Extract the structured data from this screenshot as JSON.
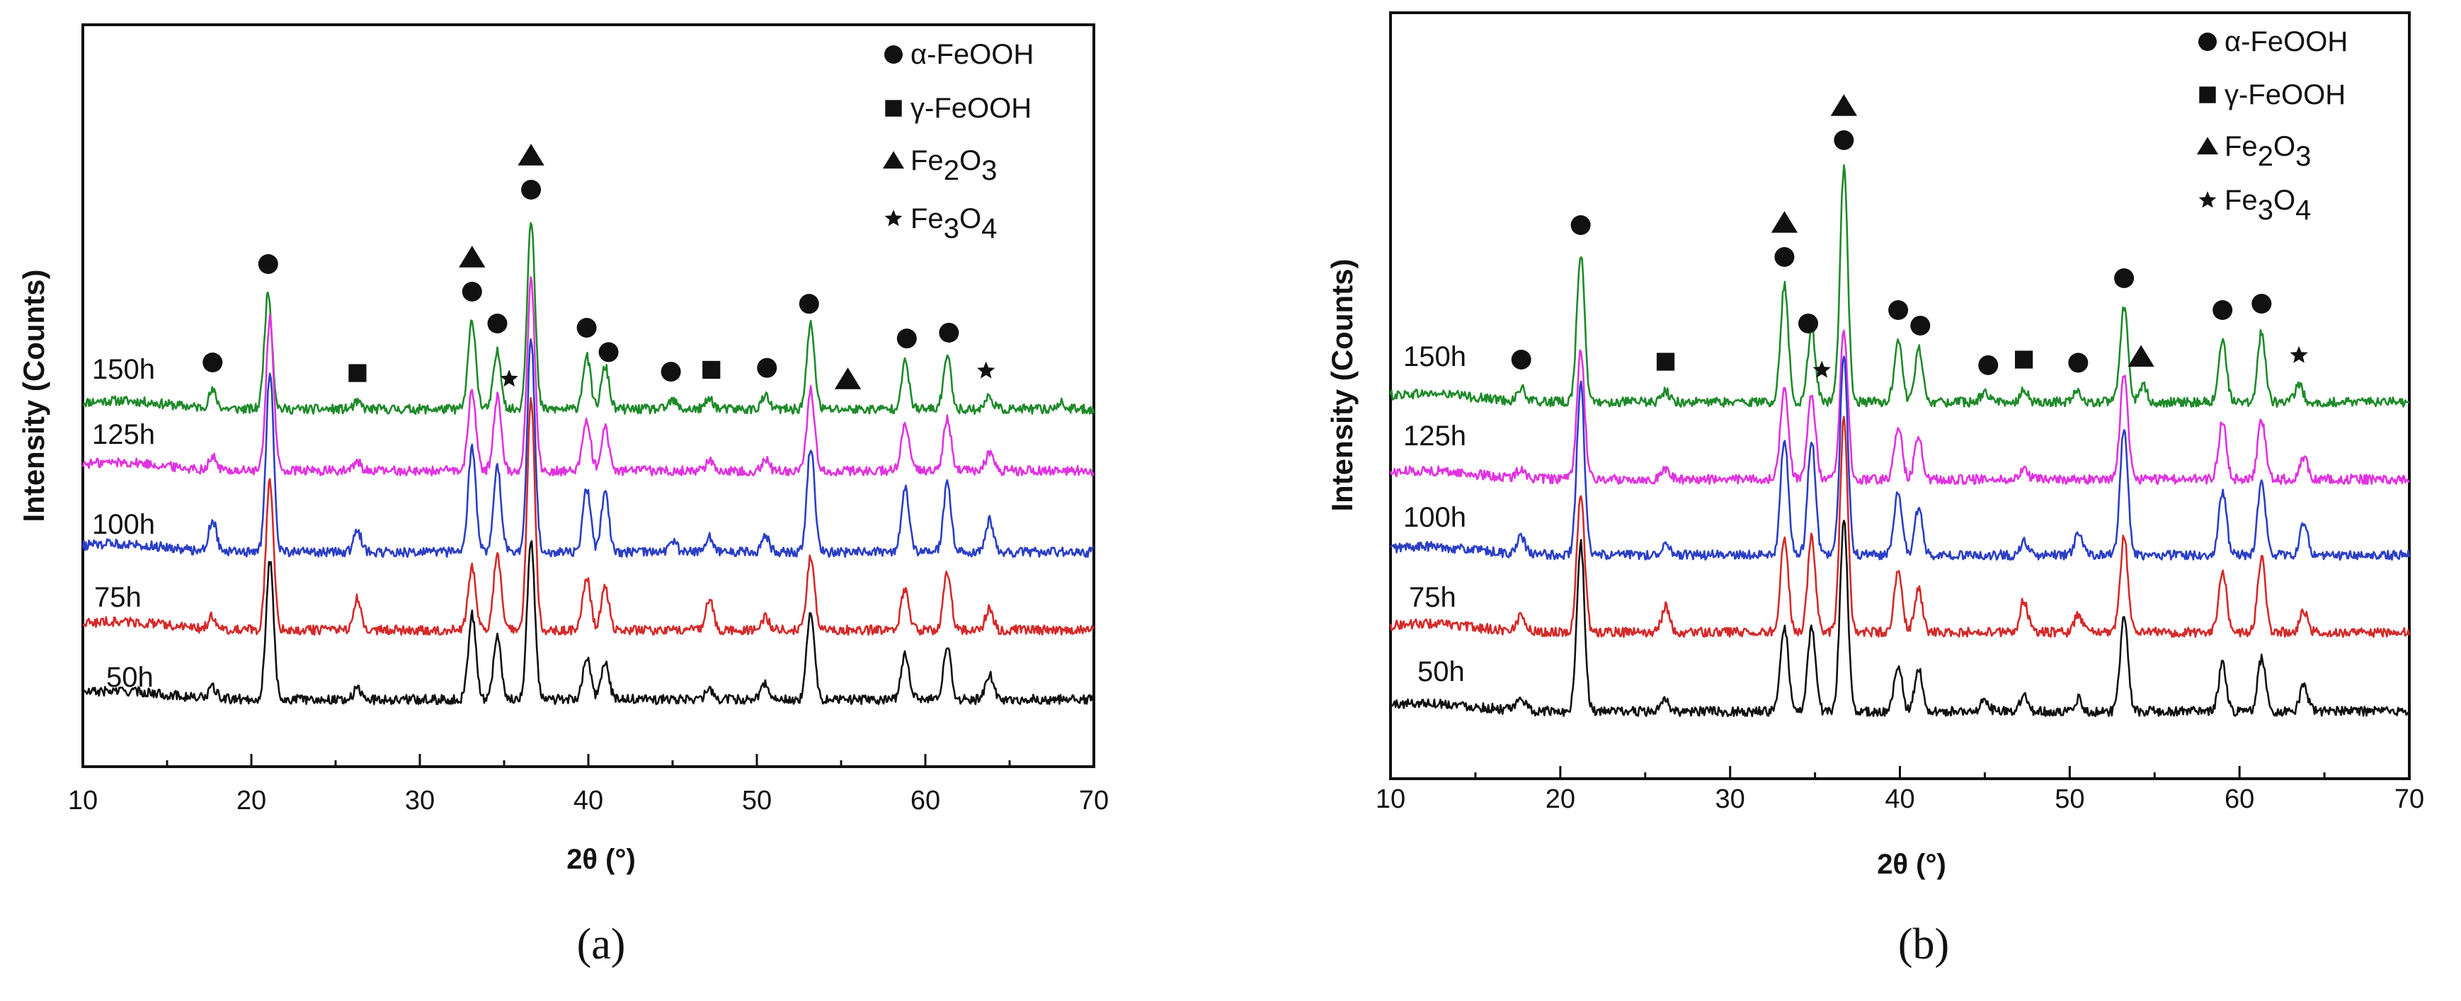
{
  "chart_data": [
    {
      "type": "line",
      "caption": "(a)",
      "xlabel": "2θ (°)",
      "ylabel": "Intensity (Counts)",
      "xlim": [
        10,
        70
      ],
      "xticks": [
        10,
        20,
        30,
        40,
        50,
        60,
        70
      ],
      "series": [
        {
          "name": "150h",
          "color": "#1f8a2a",
          "peaks": [
            [
              17.7,
              0.08
            ],
            [
              21.0,
              0.55
            ],
            [
              26.3,
              0.03
            ],
            [
              33.1,
              0.42
            ],
            [
              34.6,
              0.27
            ],
            [
              36.6,
              0.9
            ],
            [
              39.9,
              0.25
            ],
            [
              41.0,
              0.2
            ],
            [
              45.0,
              0.04
            ],
            [
              47.2,
              0.05
            ],
            [
              50.5,
              0.06
            ],
            [
              53.2,
              0.4
            ],
            [
              58.8,
              0.22
            ],
            [
              61.3,
              0.25
            ],
            [
              63.8,
              0.06
            ],
            [
              68.0,
              0.03
            ]
          ]
        },
        {
          "name": "125h",
          "color": "#e033e0",
          "peaks": [
            [
              17.7,
              0.06
            ],
            [
              21.1,
              0.72
            ],
            [
              26.3,
              0.04
            ],
            [
              33.1,
              0.38
            ],
            [
              34.6,
              0.35
            ],
            [
              36.6,
              0.9
            ],
            [
              39.9,
              0.25
            ],
            [
              41.0,
              0.2
            ],
            [
              47.2,
              0.05
            ],
            [
              50.5,
              0.05
            ],
            [
              53.2,
              0.38
            ],
            [
              58.8,
              0.22
            ],
            [
              61.3,
              0.25
            ],
            [
              63.8,
              0.08
            ]
          ]
        },
        {
          "name": "100h",
          "color": "#2b3fc4",
          "peaks": [
            [
              17.7,
              0.15
            ],
            [
              21.1,
              0.85
            ],
            [
              26.3,
              0.1
            ],
            [
              33.1,
              0.5
            ],
            [
              34.6,
              0.4
            ],
            [
              36.6,
              1.0
            ],
            [
              39.9,
              0.3
            ],
            [
              41.0,
              0.28
            ],
            [
              45.0,
              0.06
            ],
            [
              47.2,
              0.07
            ],
            [
              50.5,
              0.08
            ],
            [
              53.2,
              0.5
            ],
            [
              58.8,
              0.3
            ],
            [
              61.3,
              0.32
            ],
            [
              63.8,
              0.15
            ]
          ]
        },
        {
          "name": "75h",
          "color": "#d42a2a",
          "peaks": [
            [
              17.7,
              0.06
            ],
            [
              21.1,
              0.7
            ],
            [
              26.3,
              0.15
            ],
            [
              33.1,
              0.3
            ],
            [
              34.6,
              0.35
            ],
            [
              36.6,
              1.1
            ],
            [
              39.9,
              0.25
            ],
            [
              41.0,
              0.2
            ],
            [
              47.2,
              0.15
            ],
            [
              50.5,
              0.06
            ],
            [
              53.2,
              0.35
            ],
            [
              58.8,
              0.2
            ],
            [
              61.3,
              0.28
            ],
            [
              63.8,
              0.1
            ]
          ]
        },
        {
          "name": "50h",
          "color": "#111111",
          "peaks": [
            [
              17.7,
              0.05
            ],
            [
              21.1,
              0.65
            ],
            [
              26.3,
              0.05
            ],
            [
              33.1,
              0.4
            ],
            [
              34.6,
              0.3
            ],
            [
              36.6,
              0.75
            ],
            [
              39.9,
              0.2
            ],
            [
              41.0,
              0.18
            ],
            [
              47.2,
              0.05
            ],
            [
              50.5,
              0.08
            ],
            [
              53.2,
              0.42
            ],
            [
              58.8,
              0.22
            ],
            [
              61.3,
              0.25
            ],
            [
              63.8,
              0.12
            ]
          ]
        }
      ],
      "phase_markers": [
        {
          "x": 17.7,
          "s": "circle",
          "n": 1
        },
        {
          "x": 21.0,
          "s": "circle",
          "n": 1
        },
        {
          "x": 26.3,
          "s": "square",
          "n": 1
        },
        {
          "x": 33.1,
          "s": "circle",
          "n": 1
        },
        {
          "x": 33.1,
          "s": "triangle",
          "n": 2
        },
        {
          "x": 34.6,
          "s": "circle",
          "n": 1
        },
        {
          "x": 35.3,
          "s": "star",
          "n": 1
        },
        {
          "x": 36.6,
          "s": "circle",
          "n": 1
        },
        {
          "x": 36.6,
          "s": "triangle",
          "n": 2
        },
        {
          "x": 39.9,
          "s": "circle",
          "n": 1
        },
        {
          "x": 41.2,
          "s": "circle",
          "n": 1
        },
        {
          "x": 44.9,
          "s": "circle",
          "n": 1
        },
        {
          "x": 47.3,
          "s": "square",
          "n": 1
        },
        {
          "x": 50.6,
          "s": "circle",
          "n": 1
        },
        {
          "x": 53.1,
          "s": "circle",
          "n": 1
        },
        {
          "x": 55.4,
          "s": "triangle",
          "n": 1
        },
        {
          "x": 58.9,
          "s": "circle",
          "n": 1
        },
        {
          "x": 61.4,
          "s": "circle",
          "n": 1
        },
        {
          "x": 63.6,
          "s": "star",
          "n": 1
        }
      ],
      "legend": [
        {
          "symbol": "circle",
          "label": "α-FeOOH"
        },
        {
          "symbol": "square",
          "label": "γ-FeOOH"
        },
        {
          "symbol": "triangle",
          "label": "Fe",
          "sub1": "2",
          "mid": "O",
          "sub2": "3"
        },
        {
          "symbol": "star",
          "label": "Fe",
          "sub1": "3",
          "mid": "O",
          "sub2": "4"
        }
      ]
    },
    {
      "type": "line",
      "caption": "(b)",
      "xlabel": "2θ (°)",
      "ylabel": "Intensity (Counts)",
      "xlim": [
        10,
        70
      ],
      "xticks": [
        10,
        20,
        30,
        40,
        50,
        60,
        70
      ],
      "series": [
        {
          "name": "150h",
          "color": "#1f8a2a",
          "peaks": [
            [
              17.7,
              0.06
            ],
            [
              21.2,
              0.7
            ],
            [
              26.2,
              0.05
            ],
            [
              33.2,
              0.55
            ],
            [
              34.8,
              0.35
            ],
            [
              36.7,
              1.1
            ],
            [
              39.9,
              0.3
            ],
            [
              41.1,
              0.25
            ],
            [
              45.0,
              0.05
            ],
            [
              47.3,
              0.06
            ],
            [
              50.4,
              0.05
            ],
            [
              53.2,
              0.45
            ],
            [
              54.3,
              0.08
            ],
            [
              59.0,
              0.3
            ],
            [
              61.3,
              0.33
            ],
            [
              63.5,
              0.08
            ]
          ]
        },
        {
          "name": "125h",
          "color": "#e033e0",
          "peaks": [
            [
              17.7,
              0.05
            ],
            [
              21.2,
              0.6
            ],
            [
              26.2,
              0.05
            ],
            [
              33.2,
              0.45
            ],
            [
              34.8,
              0.4
            ],
            [
              36.7,
              0.7
            ],
            [
              39.9,
              0.25
            ],
            [
              41.1,
              0.2
            ],
            [
              47.3,
              0.05
            ],
            [
              53.2,
              0.5
            ],
            [
              59.0,
              0.28
            ],
            [
              61.3,
              0.28
            ],
            [
              63.8,
              0.1
            ]
          ]
        },
        {
          "name": "100h",
          "color": "#2b3fc4",
          "peaks": [
            [
              17.7,
              0.08
            ],
            [
              21.2,
              0.8
            ],
            [
              26.2,
              0.06
            ],
            [
              33.2,
              0.55
            ],
            [
              34.8,
              0.55
            ],
            [
              36.7,
              0.95
            ],
            [
              39.9,
              0.3
            ],
            [
              41.1,
              0.22
            ],
            [
              47.3,
              0.06
            ],
            [
              50.5,
              0.1
            ],
            [
              53.2,
              0.6
            ],
            [
              59.0,
              0.3
            ],
            [
              61.3,
              0.35
            ],
            [
              63.8,
              0.15
            ]
          ]
        },
        {
          "name": "75h",
          "color": "#d42a2a",
          "peaks": [
            [
              17.7,
              0.08
            ],
            [
              21.2,
              0.65
            ],
            [
              26.2,
              0.12
            ],
            [
              33.2,
              0.45
            ],
            [
              34.8,
              0.45
            ],
            [
              36.7,
              1.0
            ],
            [
              39.9,
              0.3
            ],
            [
              41.1,
              0.2
            ],
            [
              47.3,
              0.15
            ],
            [
              50.5,
              0.08
            ],
            [
              53.2,
              0.45
            ],
            [
              59.0,
              0.3
            ],
            [
              61.3,
              0.35
            ],
            [
              63.8,
              0.1
            ]
          ]
        },
        {
          "name": "50h",
          "color": "#111111",
          "peaks": [
            [
              17.7,
              0.06
            ],
            [
              21.2,
              0.8
            ],
            [
              26.2,
              0.05
            ],
            [
              33.2,
              0.4
            ],
            [
              34.8,
              0.4
            ],
            [
              36.7,
              0.9
            ],
            [
              39.9,
              0.22
            ],
            [
              41.1,
              0.2
            ],
            [
              45.0,
              0.06
            ],
            [
              47.3,
              0.08
            ],
            [
              50.5,
              0.06
            ],
            [
              53.2,
              0.45
            ],
            [
              59.0,
              0.22
            ],
            [
              61.3,
              0.25
            ],
            [
              63.8,
              0.12
            ]
          ]
        }
      ],
      "phase_markers": [
        {
          "x": 17.7,
          "s": "circle",
          "n": 1
        },
        {
          "x": 21.2,
          "s": "circle",
          "n": 1
        },
        {
          "x": 26.2,
          "s": "square",
          "n": 1
        },
        {
          "x": 33.2,
          "s": "circle",
          "n": 1
        },
        {
          "x": 33.2,
          "s": "triangle",
          "n": 2
        },
        {
          "x": 34.6,
          "s": "circle",
          "n": 1
        },
        {
          "x": 35.4,
          "s": "star",
          "n": 1
        },
        {
          "x": 36.7,
          "s": "circle",
          "n": 1
        },
        {
          "x": 36.7,
          "s": "triangle",
          "n": 2
        },
        {
          "x": 39.9,
          "s": "circle",
          "n": 1
        },
        {
          "x": 41.2,
          "s": "circle",
          "n": 1
        },
        {
          "x": 45.2,
          "s": "circle",
          "n": 1
        },
        {
          "x": 47.3,
          "s": "square",
          "n": 1
        },
        {
          "x": 50.5,
          "s": "circle",
          "n": 1
        },
        {
          "x": 53.2,
          "s": "circle",
          "n": 1
        },
        {
          "x": 54.2,
          "s": "triangle",
          "n": 1
        },
        {
          "x": 59.0,
          "s": "circle",
          "n": 1
        },
        {
          "x": 61.3,
          "s": "circle",
          "n": 1
        },
        {
          "x": 63.5,
          "s": "star",
          "n": 1
        }
      ],
      "legend": [
        {
          "symbol": "circle",
          "label": "α-FeOOH"
        },
        {
          "symbol": "square",
          "label": "γ-FeOOH"
        },
        {
          "symbol": "triangle",
          "label": "Fe",
          "sub1": "2",
          "mid": "O",
          "sub2": "3"
        },
        {
          "symbol": "star",
          "label": "Fe",
          "sub1": "3",
          "mid": "O",
          "sub2": "4"
        }
      ]
    }
  ]
}
